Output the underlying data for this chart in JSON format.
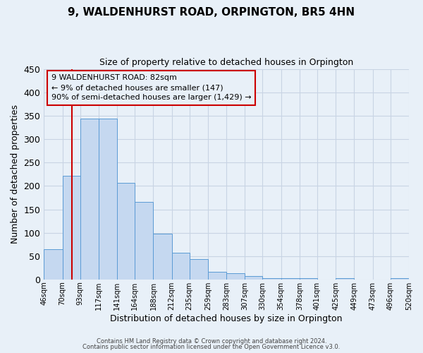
{
  "title": "9, WALDENHURST ROAD, ORPINGTON, BR5 4HN",
  "subtitle": "Size of property relative to detached houses in Orpington",
  "xlabel": "Distribution of detached houses by size in Orpington",
  "ylabel": "Number of detached properties",
  "bin_edges": [
    46,
    70,
    93,
    117,
    141,
    164,
    188,
    212,
    235,
    259,
    283,
    307,
    330,
    354,
    378,
    401,
    425,
    449,
    473,
    496,
    520
  ],
  "bar_heights": [
    65,
    222,
    345,
    345,
    207,
    166,
    98,
    57,
    43,
    16,
    14,
    7,
    2,
    2,
    2,
    0,
    3,
    0,
    0,
    3
  ],
  "bar_color": "#c5d8f0",
  "bar_edge_color": "#5b9bd5",
  "property_size": 82,
  "property_line_color": "#cc0000",
  "ylim": [
    0,
    450
  ],
  "yticks": [
    0,
    50,
    100,
    150,
    200,
    250,
    300,
    350,
    400,
    450
  ],
  "annotation_title": "9 WALDENHURST ROAD: 82sqm",
  "annotation_line1": "← 9% of detached houses are smaller (147)",
  "annotation_line2": "90% of semi-detached houses are larger (1,429) →",
  "annotation_box_color": "#cc0000",
  "bg_color": "#e8f0f8",
  "grid_color": "#c8d4e4",
  "footer_line1": "Contains HM Land Registry data © Crown copyright and database right 2024.",
  "footer_line2": "Contains public sector information licensed under the Open Government Licence v3.0."
}
